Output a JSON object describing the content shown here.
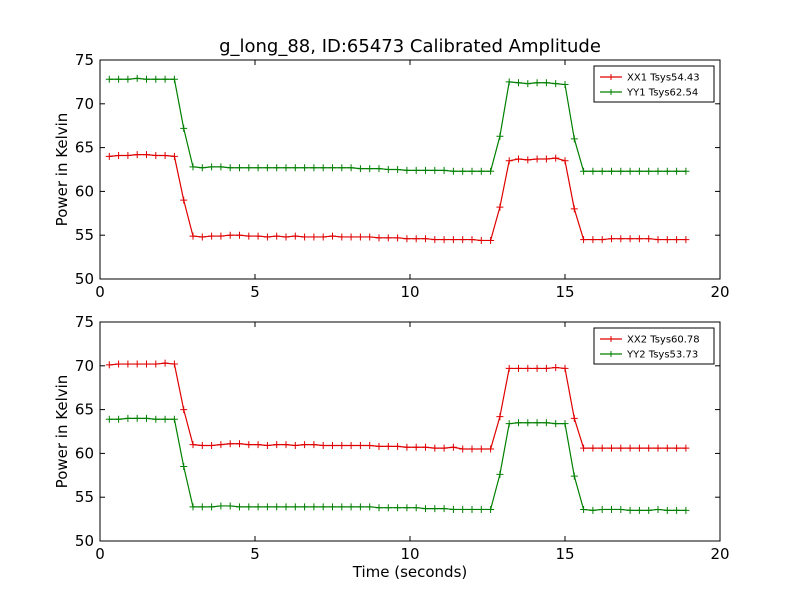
{
  "chart_data": [
    {
      "type": "line",
      "title": "g_long_88, ID:65473 Calibrated Amplitude",
      "xlabel": "",
      "ylabel": "Power in Kelvin",
      "xlim": [
        0,
        20
      ],
      "ylim": [
        50,
        75
      ],
      "x_ticks": [
        "0",
        "5",
        "10",
        "15",
        "20"
      ],
      "y_ticks": [
        "50",
        "55",
        "60",
        "65",
        "70",
        "75"
      ],
      "grid": false,
      "legend_position": "top-right",
      "x": [
        0.3,
        0.6,
        0.9,
        1.2,
        1.5,
        1.8,
        2.1,
        2.4,
        2.7,
        3.0,
        3.3,
        3.6,
        3.9,
        4.2,
        4.5,
        4.8,
        5.1,
        5.4,
        5.7,
        6.0,
        6.3,
        6.6,
        6.9,
        7.2,
        7.5,
        7.8,
        8.1,
        8.4,
        8.7,
        9.0,
        9.3,
        9.6,
        9.9,
        10.2,
        10.5,
        10.8,
        11.1,
        11.4,
        11.7,
        12.0,
        12.3,
        12.6,
        12.9,
        13.2,
        13.5,
        13.8,
        14.1,
        14.4,
        14.7,
        15.0,
        15.3,
        15.6,
        15.9,
        16.2,
        16.5,
        16.8,
        17.1,
        17.4,
        17.7,
        18.0,
        18.3,
        18.6,
        18.9
      ],
      "series": [
        {
          "name": "XX1 Tsys54.43",
          "color": "#e00000",
          "values": [
            64.0,
            64.1,
            64.1,
            64.2,
            64.2,
            64.1,
            64.1,
            64.0,
            59.0,
            54.9,
            54.8,
            54.9,
            54.9,
            55.0,
            55.0,
            54.9,
            54.9,
            54.8,
            54.9,
            54.8,
            54.9,
            54.8,
            54.8,
            54.8,
            54.9,
            54.8,
            54.8,
            54.8,
            54.8,
            54.7,
            54.7,
            54.7,
            54.6,
            54.6,
            54.6,
            54.5,
            54.5,
            54.5,
            54.5,
            54.5,
            54.4,
            54.4,
            58.2,
            63.5,
            63.7,
            63.6,
            63.7,
            63.7,
            63.8,
            63.5,
            58.0,
            54.5,
            54.5,
            54.5,
            54.6,
            54.6,
            54.6,
            54.6,
            54.6,
            54.5,
            54.5,
            54.5,
            54.5
          ]
        },
        {
          "name": "YY1 Tsys62.54",
          "color": "#008000",
          "values": [
            72.8,
            72.8,
            72.8,
            72.9,
            72.8,
            72.8,
            72.8,
            72.8,
            67.2,
            62.8,
            62.7,
            62.8,
            62.8,
            62.7,
            62.7,
            62.7,
            62.7,
            62.7,
            62.7,
            62.7,
            62.7,
            62.7,
            62.7,
            62.7,
            62.7,
            62.7,
            62.7,
            62.6,
            62.6,
            62.6,
            62.5,
            62.5,
            62.4,
            62.4,
            62.4,
            62.4,
            62.4,
            62.3,
            62.3,
            62.3,
            62.3,
            62.3,
            66.3,
            72.5,
            72.4,
            72.3,
            72.4,
            72.4,
            72.3,
            72.2,
            66.0,
            62.3,
            62.3,
            62.3,
            62.3,
            62.3,
            62.3,
            62.3,
            62.3,
            62.3,
            62.3,
            62.3,
            62.3
          ]
        }
      ]
    },
    {
      "type": "line",
      "title": "",
      "xlabel": "Time (seconds)",
      "ylabel": "Power in Kelvin",
      "xlim": [
        0,
        20
      ],
      "ylim": [
        50,
        75
      ],
      "x_ticks": [
        "0",
        "5",
        "10",
        "15",
        "20"
      ],
      "y_ticks": [
        "50",
        "55",
        "60",
        "65",
        "70",
        "75"
      ],
      "grid": false,
      "legend_position": "top-right",
      "x": [
        0.3,
        0.6,
        0.9,
        1.2,
        1.5,
        1.8,
        2.1,
        2.4,
        2.7,
        3.0,
        3.3,
        3.6,
        3.9,
        4.2,
        4.5,
        4.8,
        5.1,
        5.4,
        5.7,
        6.0,
        6.3,
        6.6,
        6.9,
        7.2,
        7.5,
        7.8,
        8.1,
        8.4,
        8.7,
        9.0,
        9.3,
        9.6,
        9.9,
        10.2,
        10.5,
        10.8,
        11.1,
        11.4,
        11.7,
        12.0,
        12.3,
        12.6,
        12.9,
        13.2,
        13.5,
        13.8,
        14.1,
        14.4,
        14.7,
        15.0,
        15.3,
        15.6,
        15.9,
        16.2,
        16.5,
        16.8,
        17.1,
        17.4,
        17.7,
        18.0,
        18.3,
        18.6,
        18.9
      ],
      "series": [
        {
          "name": "XX2 Tsys60.78",
          "color": "#e00000",
          "values": [
            70.1,
            70.2,
            70.2,
            70.2,
            70.2,
            70.2,
            70.3,
            70.2,
            65.0,
            61.0,
            60.9,
            60.9,
            61.0,
            61.1,
            61.1,
            61.0,
            61.0,
            60.9,
            61.0,
            61.0,
            60.9,
            61.0,
            61.0,
            60.9,
            60.9,
            60.9,
            60.9,
            60.9,
            60.9,
            60.8,
            60.8,
            60.8,
            60.7,
            60.7,
            60.7,
            60.6,
            60.6,
            60.7,
            60.5,
            60.5,
            60.5,
            60.5,
            64.2,
            69.7,
            69.7,
            69.7,
            69.7,
            69.7,
            69.8,
            69.7,
            64.0,
            60.6,
            60.6,
            60.6,
            60.6,
            60.6,
            60.6,
            60.6,
            60.6,
            60.6,
            60.6,
            60.6,
            60.6
          ]
        },
        {
          "name": "YY2 Tsys53.73",
          "color": "#008000",
          "values": [
            63.9,
            63.9,
            64.0,
            64.0,
            64.0,
            63.9,
            63.9,
            63.9,
            58.5,
            53.9,
            53.9,
            53.9,
            54.0,
            54.0,
            53.9,
            53.9,
            53.9,
            53.9,
            53.9,
            53.9,
            53.9,
            53.9,
            53.9,
            53.9,
            53.9,
            53.9,
            53.9,
            53.9,
            53.9,
            53.8,
            53.8,
            53.8,
            53.8,
            53.8,
            53.7,
            53.7,
            53.7,
            53.6,
            53.6,
            53.6,
            53.6,
            53.6,
            57.6,
            63.4,
            63.5,
            63.5,
            63.5,
            63.5,
            63.4,
            63.4,
            57.4,
            53.6,
            53.5,
            53.6,
            53.6,
            53.6,
            53.5,
            53.5,
            53.5,
            53.6,
            53.5,
            53.5,
            53.5
          ]
        }
      ]
    }
  ]
}
